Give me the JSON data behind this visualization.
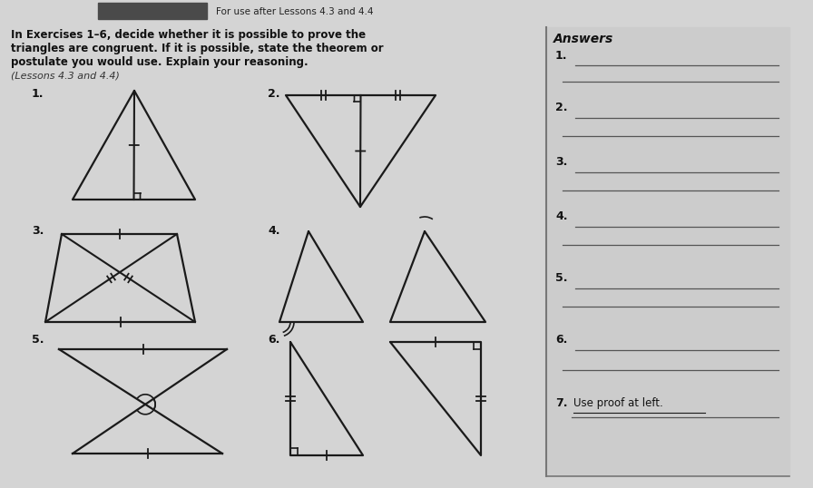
{
  "bg_color": "#d4d4d4",
  "header_bar_color": "#4a4a4a",
  "header_text": "For use after Lessons 4.3 and 4.4",
  "instruction_bold_line1": "In Exercises 1–6, decide whether it is possible to prove the",
  "instruction_bold_line2": "triangles are congruent. If it is possible, state the theorem or",
  "instruction_bold_line3": "postulate you would use. Explain your reasoning.",
  "instruction_italic": "(Lessons 4.3 and 4.4)",
  "answers_title": "Answers",
  "answer7_text": "Use proof at left.",
  "line_color": "#1a1a1a",
  "answer_line_color": "#555555",
  "panel_bg": "#d0d0d0"
}
